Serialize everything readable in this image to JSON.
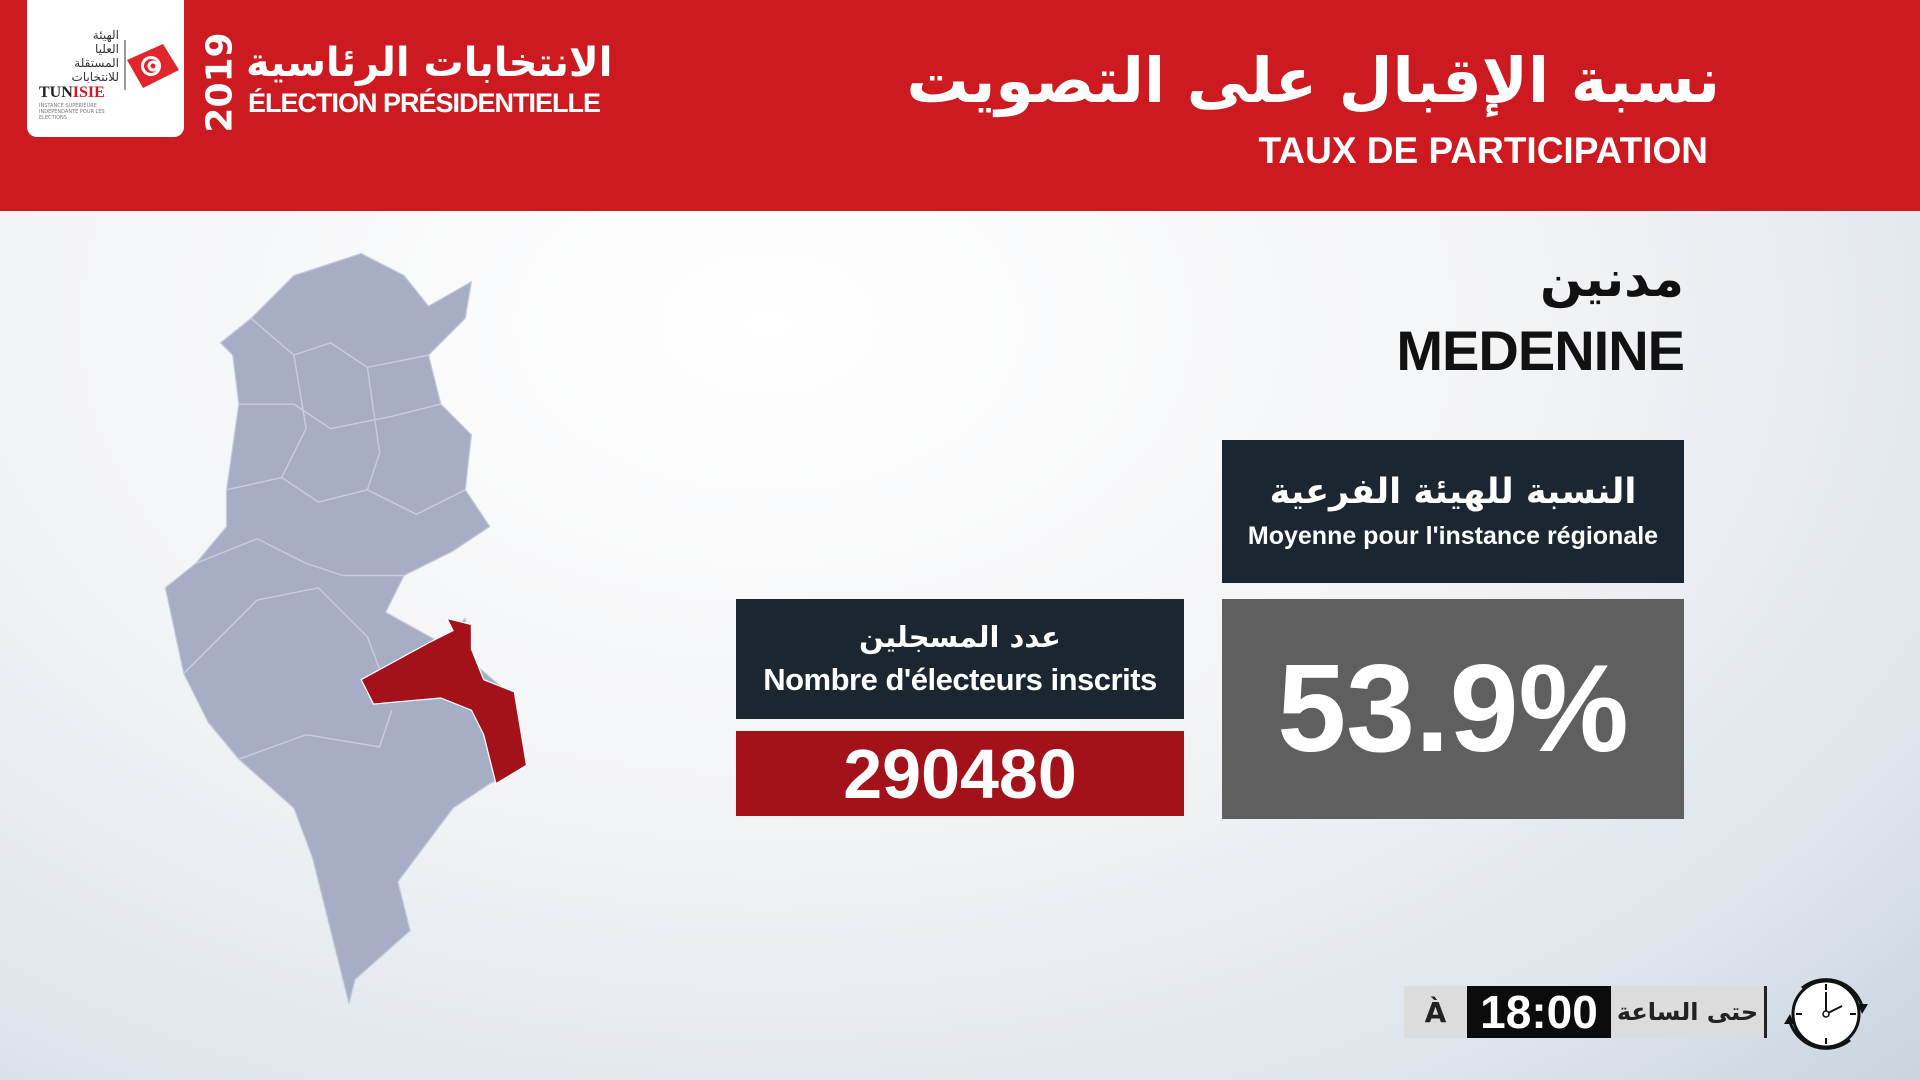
{
  "header": {
    "logo": {
      "arabic_lines": [
        "الهيئة",
        "العليا",
        "المستقلة",
        "للانتخابات"
      ],
      "brand_prefix": "TUN",
      "brand_suffix": "ISIE",
      "subtitle": "INSTANCE SUPERIEURE INDEPENDANTE POUR LES ELECTIONS"
    },
    "year": "2019",
    "election_ar": "الانتخابات الرئاسية",
    "election_fr": "ÉLECTION PRÉSIDENTIELLE",
    "title_ar": "نسبة الإقبال على التصويت",
    "title_fr": "TAUX DE PARTICIPATION"
  },
  "region": {
    "name_ar": "مدنين",
    "name_fr": "MEDENINE"
  },
  "average": {
    "label_ar": "النسبة للهيئة الفرعية",
    "label_fr": "Moyenne pour l'instance régionale",
    "value": "53.9%"
  },
  "registered": {
    "label_ar": "عدد المسجلين",
    "label_fr": "Nombre d'électeurs inscrits",
    "value": "290480"
  },
  "timer": {
    "prefix_fr": "À",
    "time": "18:00",
    "label_ar": "حتى الساعة",
    "icon": "clock-icon"
  },
  "map": {
    "highlighted_region": "Medenine",
    "highlight_color": "#a3111b",
    "base_color": "#a7adc4"
  },
  "colors": {
    "header_red": "#cc1a20",
    "dark_box": "#1a2733",
    "value_gray": "#5f5f5f"
  }
}
